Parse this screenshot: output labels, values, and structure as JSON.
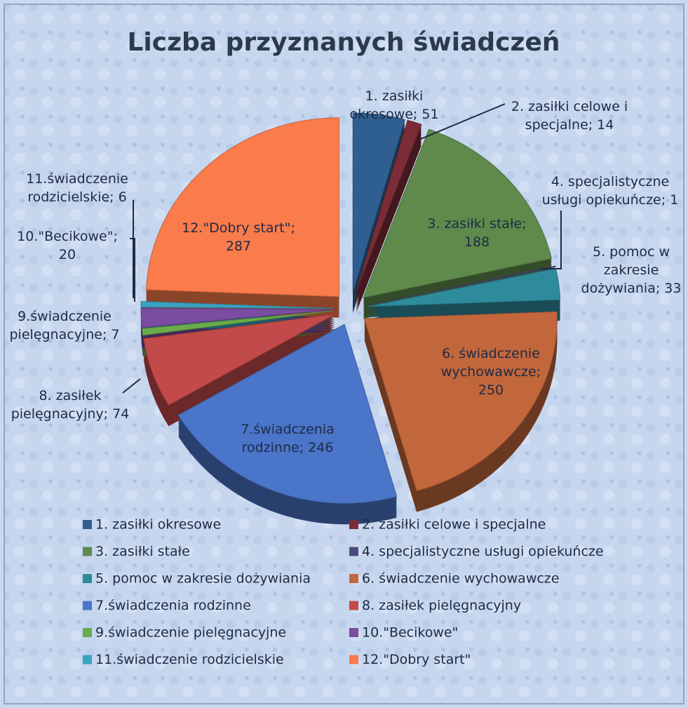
{
  "chart_data": {
    "type": "pie",
    "title": "Liczba przyznanych świadczeń",
    "categories": [
      "1. zasiłki okresowe",
      "2. zasiłki celowe i specjalne",
      "3. zasiłki stałe",
      "4. specjalistyczne usługi opiekuńcze",
      "5. pomoc w zakresie dożywiania",
      "6. świadczenie wychowawcze",
      "7.świadczenia rodzinne",
      "8. zasiłek pielęgnacyjny",
      "9.świadczenie pielęgnacyjne",
      "10.\"Becikowe\"",
      "11.świadczenie rodzicielskie",
      "12.\"Dobry start\""
    ],
    "values": [
      51,
      14,
      188,
      1,
      33,
      250,
      246,
      74,
      7,
      20,
      6,
      287
    ],
    "value_labels": [
      "1. zasiłki okresowe; 51",
      "2. zasiłki celowe i specjalne; 14",
      "3. zasiłki stałe; 188",
      "4. specjalistyczne usługi opiekuńcze; 1",
      "5. pomoc w zakresie dożywiania; 33",
      "6. świadczenie wychowawcze; 250",
      "7.świadczenia rodzinne; 246",
      "8. zasiłek pielęgnacyjny; 74",
      "9.świadczenie pielęgnacyjne; 7",
      "10.\"Becikowe\"; 20",
      "11.świadczenie rodzicielskie; 6",
      "12.\"Dobry start\"; 287"
    ],
    "colors": [
      "#2f5f90",
      "#7c2c36",
      "#5f8a4c",
      "#4b4b7c",
      "#2e8b9c",
      "#c2673c",
      "#4a75c9",
      "#c34a4a",
      "#6aab4c",
      "#7a4ca2",
      "#3aa2c2",
      "#fa7b4b"
    ],
    "legend": "bottom"
  }
}
